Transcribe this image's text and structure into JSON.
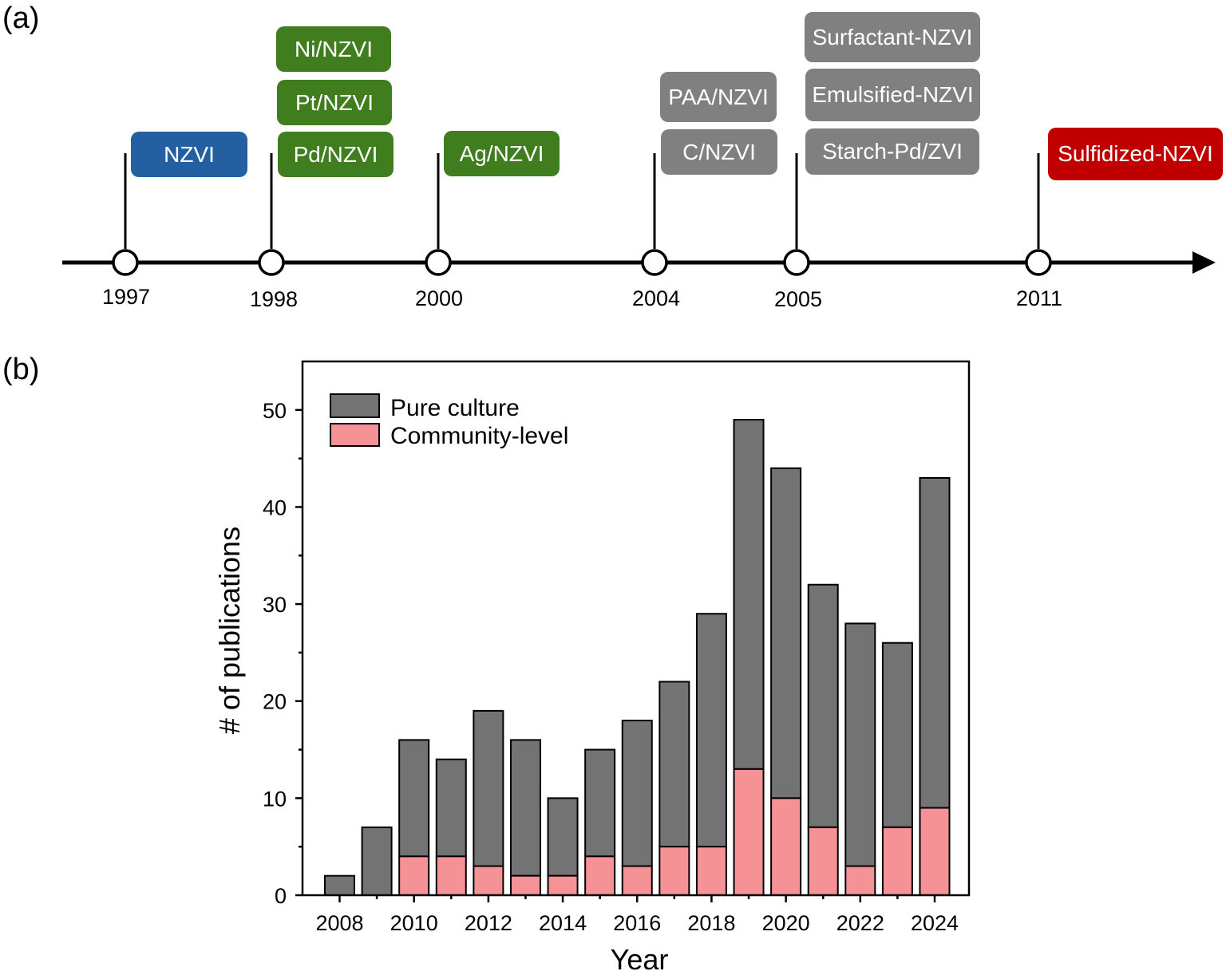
{
  "colors": {
    "nzvi": "#2460a1",
    "metal": "#3f7d1f",
    "coated": "#808080",
    "sulfidized": "#c00000",
    "pure_culture": "#737373",
    "community_level": "#f59295"
  },
  "panel_a": {
    "label": "(a)",
    "years": [
      "1997",
      "1998",
      "2000",
      "2004",
      "2005",
      "2011"
    ],
    "boxes": {
      "nzvi": "NZVI",
      "ni": "Ni/NZVI",
      "pt": "Pt/NZVI",
      "pd": "Pd/NZVI",
      "ag": "Ag/NZVI",
      "paa": "PAA/NZVI",
      "c": "C/NZVI",
      "surfactant": "Surfactant-NZVI",
      "emulsified": "Emulsified-NZVI",
      "starch": "Starch-Pd/ZVI",
      "sulfidized": "Sulfidized-NZVI"
    }
  },
  "panel_b": {
    "label": "(b)"
  },
  "chart_data": {
    "type": "bar",
    "stacked": true,
    "categories": [
      "2008",
      "2009",
      "2010",
      "2011",
      "2012",
      "2013",
      "2014",
      "2015",
      "2016",
      "2017",
      "2018",
      "2019",
      "2020",
      "2021",
      "2022",
      "2023",
      "2024"
    ],
    "series": [
      {
        "name": "Community-level",
        "values": [
          0,
          0,
          4,
          4,
          3,
          2,
          2,
          4,
          3,
          5,
          5,
          13,
          10,
          7,
          3,
          7,
          9
        ]
      },
      {
        "name": "Pure culture",
        "values": [
          2,
          7,
          12,
          10,
          16,
          14,
          8,
          11,
          15,
          17,
          24,
          36,
          34,
          25,
          25,
          19,
          34
        ]
      }
    ],
    "xlabel": "Year",
    "ylabel": "# of publications",
    "ylim": [
      0,
      55
    ],
    "yticks": [
      "0",
      "10",
      "20",
      "30",
      "40",
      "50"
    ],
    "xticks": [
      "2008",
      "2010",
      "2012",
      "2014",
      "2016",
      "2018",
      "2020",
      "2022",
      "2024"
    ],
    "legend_position": "top-left",
    "grid": false
  }
}
